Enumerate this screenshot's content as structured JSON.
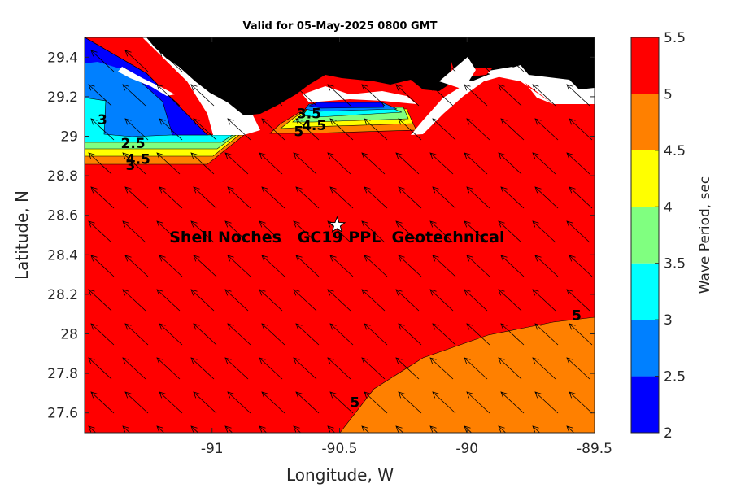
{
  "chart_data": {
    "type": "heatmap",
    "title": "Valid for 05-May-2025 0800 GMT",
    "xlabel": "Longitude, W",
    "ylabel": "Latitude, N",
    "xlim": [
      -91.5,
      -89.5
    ],
    "ylim": [
      27.5,
      29.5
    ],
    "x_ticks": [
      {
        "value": -91,
        "label": "-91"
      },
      {
        "value": -90.5,
        "label": "-90.5"
      },
      {
        "value": -90,
        "label": "-90"
      },
      {
        "value": -89.5,
        "label": "-89.5"
      }
    ],
    "y_ticks": [
      {
        "value": 27.6,
        "label": "27.6"
      },
      {
        "value": 27.8,
        "label": "27.8"
      },
      {
        "value": 28,
        "label": "28"
      },
      {
        "value": 28.2,
        "label": "28.2"
      },
      {
        "value": 28.4,
        "label": "28.4"
      },
      {
        "value": 28.6,
        "label": "28.6"
      },
      {
        "value": 28.8,
        "label": "28.8"
      },
      {
        "value": 29,
        "label": "29"
      },
      {
        "value": 29.2,
        "label": "29.2"
      },
      {
        "value": 29.4,
        "label": "29.4"
      }
    ],
    "colorbar": {
      "label": "Wave Period, sec",
      "range": [
        2,
        5.5
      ],
      "levels": [
        {
          "from": 2.0,
          "to": 2.5,
          "color": "#0000ff"
        },
        {
          "from": 2.5,
          "to": 3.0,
          "color": "#0080ff"
        },
        {
          "from": 3.0,
          "to": 3.5,
          "color": "#00ffff"
        },
        {
          "from": 3.5,
          "to": 4.0,
          "color": "#80ff80"
        },
        {
          "from": 4.0,
          "to": 4.5,
          "color": "#ffff00"
        },
        {
          "from": 4.5,
          "to": 5.0,
          "color": "#ff8000"
        },
        {
          "from": 5.0,
          "to": 5.5,
          "color": "#ff0000"
        }
      ],
      "tick_labels": [
        "2",
        "2.5",
        "3",
        "3.5",
        "4",
        "4.5",
        "5",
        "5.5"
      ]
    },
    "contour_labels": [
      {
        "text": "3",
        "lon": -91.43,
        "lat": 29.06
      },
      {
        "text": "2.5",
        "lon": -91.31,
        "lat": 28.94
      },
      {
        "text": "4.5",
        "lon": -91.29,
        "lat": 28.86
      },
      {
        "text": "3",
        "lon": -91.32,
        "lat": 28.83
      },
      {
        "text": "5",
        "lon": -90.66,
        "lat": 29.0
      },
      {
        "text": "4.5",
        "lon": -90.6,
        "lat": 29.03
      },
      {
        "text": "3.5",
        "lon": -90.62,
        "lat": 29.09
      },
      {
        "text": "5",
        "lon": -89.57,
        "lat": 28.07
      },
      {
        "text": "5",
        "lon": -90.44,
        "lat": 27.63
      }
    ],
    "site": {
      "name": "Shell Noches   GC19 PPL  Geotechnical",
      "lon": -90.51,
      "lat": 28.55,
      "marker": "star-icon"
    },
    "land_color": "#000000",
    "arrow_direction": "northwest"
  }
}
